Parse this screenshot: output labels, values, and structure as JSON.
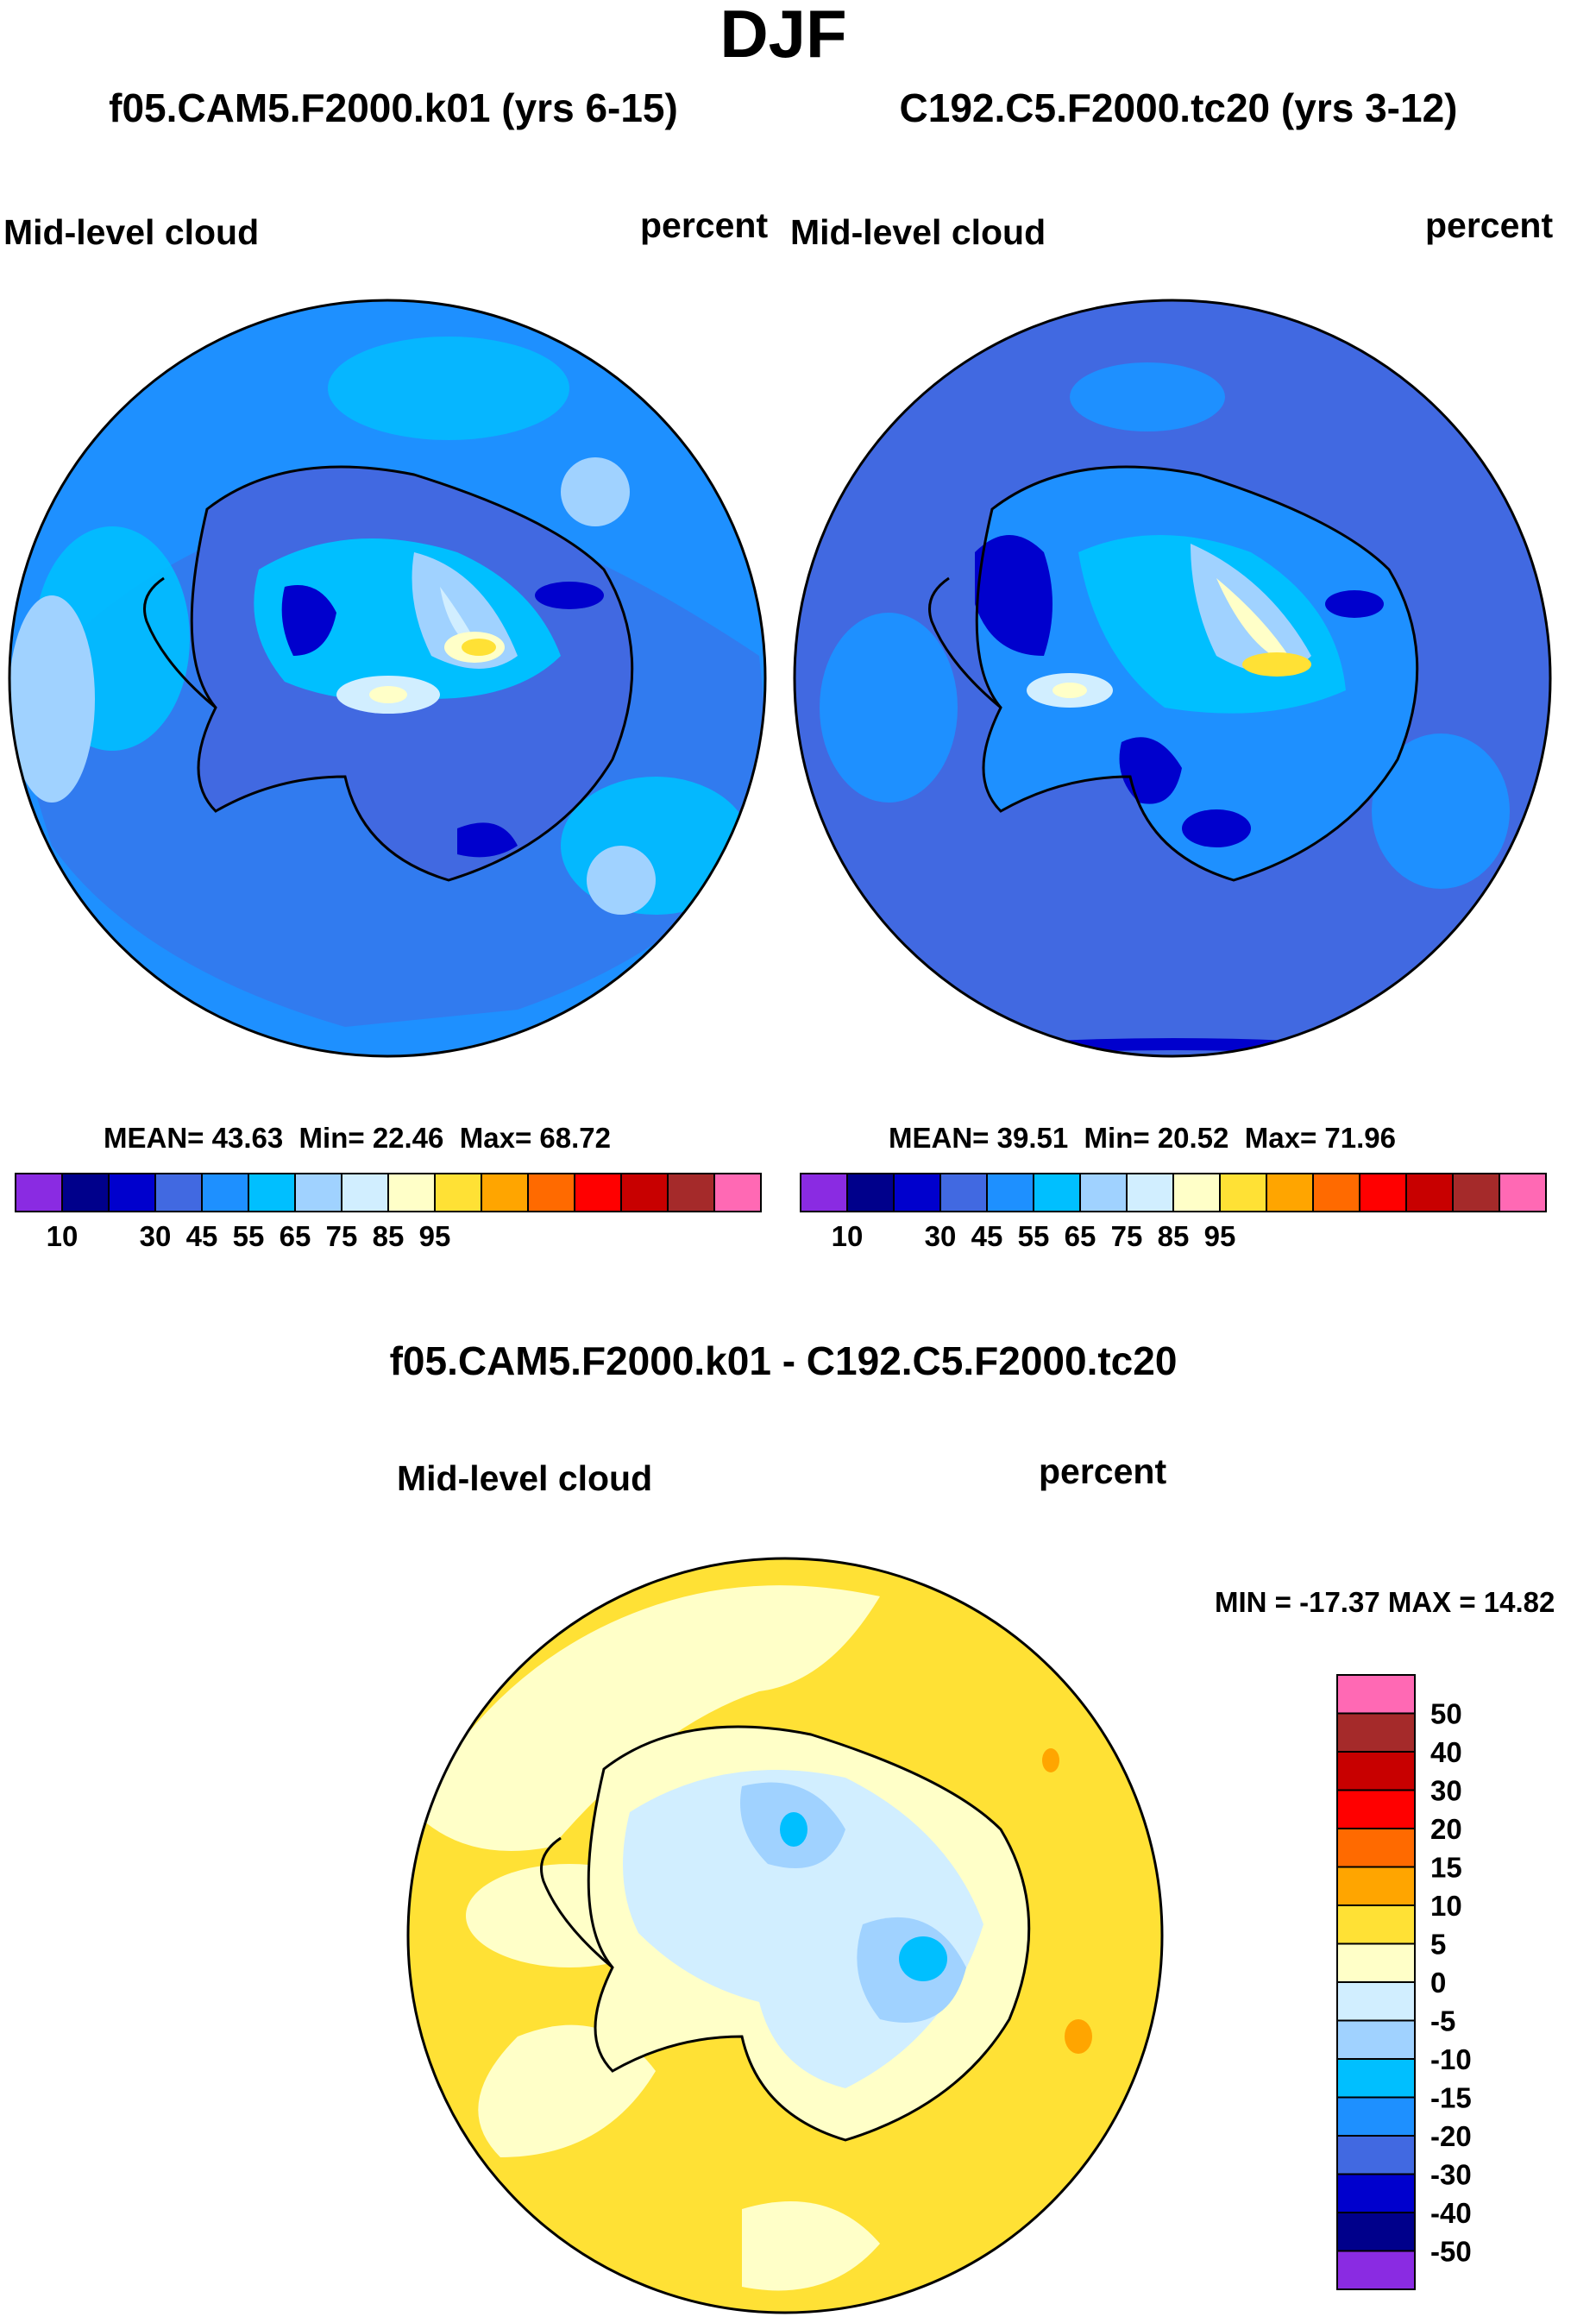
{
  "title": "DJF",
  "panels": [
    {
      "case_title": "f05.CAM5.F2000.k01 (yrs 6-15)",
      "variable": "Mid-level cloud",
      "units": "percent",
      "stats": {
        "mean_label": "MEAN=",
        "mean": "43.63",
        "min_label": "Min=",
        "min": "22.46",
        "max_label": "Max=",
        "max": "68.72"
      }
    },
    {
      "case_title": "C192.C5.F2000.tc20 (yrs 3-12)",
      "variable": "Mid-level cloud",
      "units": "percent",
      "stats": {
        "mean_label": "MEAN=",
        "mean": "39.51",
        "min_label": "Min=",
        "min": "20.52",
        "max_label": "Max=",
        "max": "71.96"
      }
    }
  ],
  "colorbar_levels": {
    "colors": [
      "#8a2be2",
      "#00008b",
      "#0000cd",
      "#4169e1",
      "#1e90ff",
      "#00bfff",
      "#a0d2ff",
      "#d1eeff",
      "#ffffc8",
      "#ffe135",
      "#ffa500",
      "#ff6a00",
      "#ff0000",
      "#c80000",
      "#a52a2a",
      "#ff69b4"
    ],
    "tick_labels": [
      "10",
      "30",
      "45",
      "55",
      "65",
      "75",
      "85",
      "95"
    ]
  },
  "difference": {
    "title": "f05.CAM5.F2000.k01 - C192.C5.F2000.tc20",
    "variable": "Mid-level cloud",
    "units": "percent",
    "minmax": "MIN = -17.37 MAX =  14.82",
    "colors": [
      "#ff69b4",
      "#a52a2a",
      "#c80000",
      "#ff0000",
      "#ff6a00",
      "#ffa500",
      "#ffe135",
      "#ffffc8",
      "#d1eeff",
      "#a0d2ff",
      "#00bfff",
      "#1e90ff",
      "#4169e1",
      "#0000cd",
      "#00008b",
      "#8a2be2"
    ],
    "tick_labels": [
      "50",
      "40",
      "30",
      "20",
      "15",
      "10",
      "5",
      "0",
      "-5",
      "-10",
      "-15",
      "-20",
      "-30",
      "-40",
      "-50"
    ]
  },
  "map_colors": {
    "ocean_a": "#1e90ff",
    "ocean_b": "#4169e1",
    "diff_bg": "#ffe135"
  }
}
